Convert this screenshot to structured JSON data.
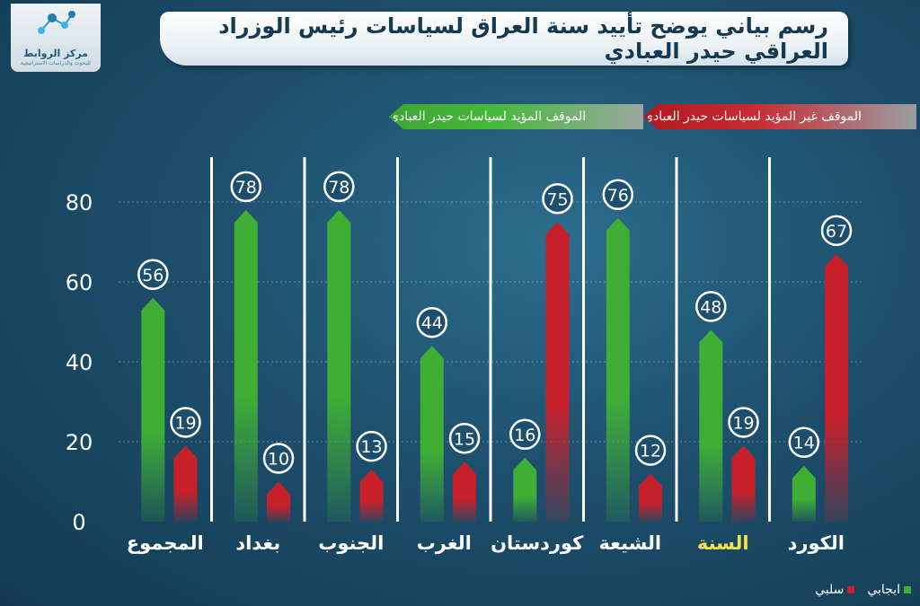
{
  "logo": {
    "name": "مركز الروابط",
    "subtitle": "للبحوث والدراسات الاستراتيجية"
  },
  "title": "رسم بياني يوضح تأييد سنة العراق لسياسات رئيس الوزراد العراقي حيدر العبادي",
  "colors": {
    "positive": "#3fae35",
    "negative": "#c8202a",
    "highlight": "#f2e34a",
    "axis_text": "#ffffff"
  },
  "chart_data": {
    "type": "bar",
    "categories": [
      "المجموع",
      "بغداد",
      "الجنوب",
      "الغرب",
      "كوردستان",
      "الشيعة",
      "السنة",
      "الكورد"
    ],
    "highlighted_category": "السنة",
    "series": [
      {
        "name": "الموقف المؤيد لسياسات حيدر العبادي",
        "legend": "ايجابي",
        "values": [
          56,
          78,
          78,
          44,
          16,
          76,
          48,
          14
        ]
      },
      {
        "name": "الموقف غير المؤيد لسياسات حيدر العبادي",
        "legend": "سلبي",
        "values": [
          19,
          10,
          13,
          15,
          75,
          12,
          19,
          67
        ]
      }
    ],
    "yticks": [
      0,
      20,
      40,
      60,
      80
    ],
    "ylim": [
      0,
      85
    ],
    "grid": true,
    "legend_position": "bottom-right"
  }
}
